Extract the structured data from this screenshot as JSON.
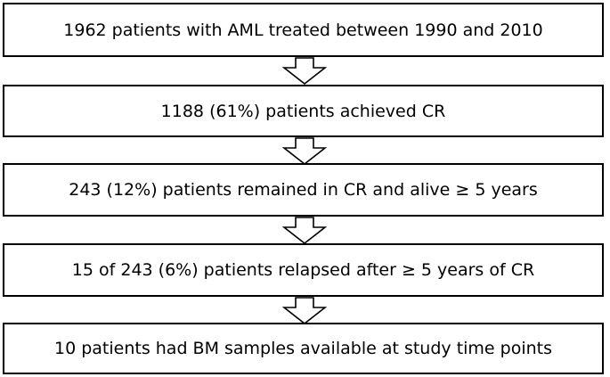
{
  "flow": {
    "steps": [
      "1962 patients with AML treated between 1990 and 2010",
      "1188 (61%) patients achieved CR",
      "243 (12%) patients remained in CR and alive ≥ 5 years",
      "15 of 243 (6%) patients relapsed after ≥ 5 years of CR",
      "10 patients had BM samples available at study time points"
    ]
  },
  "colors": {
    "stroke": "#000000",
    "background": "#ffffff"
  }
}
